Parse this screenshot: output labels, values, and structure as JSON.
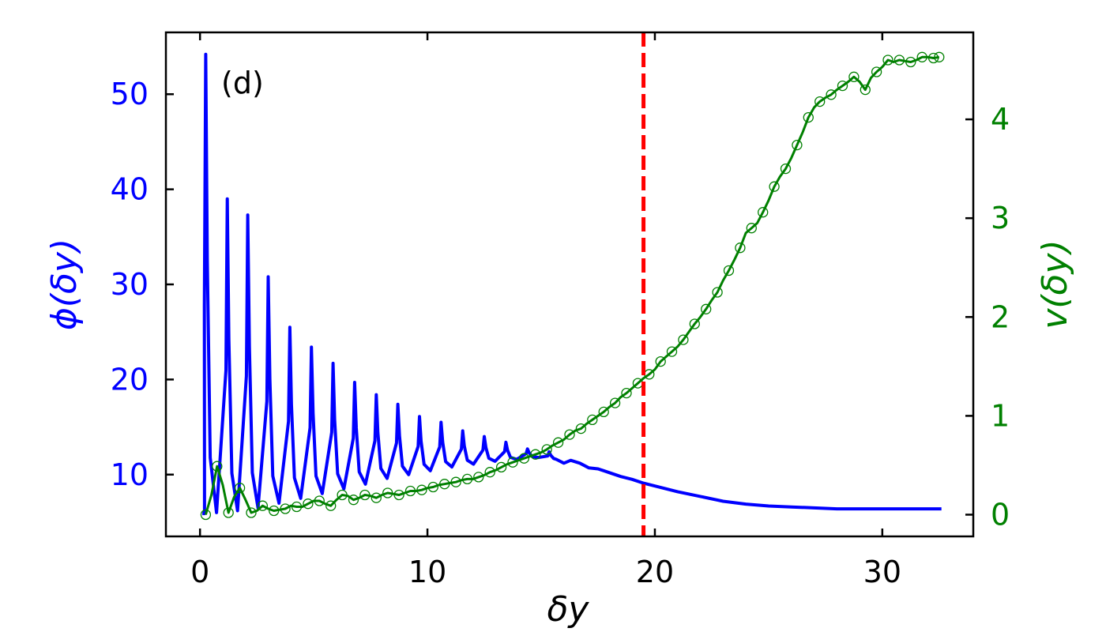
{
  "chart_data": {
    "type": "line",
    "panel_label": "(d)",
    "xlabel": "δy",
    "ylabel_left": "ϕ(δy)",
    "ylabel_right": "v(δy)",
    "xlim": [
      -1.5,
      34.0
    ],
    "ylim_left": [
      3.5,
      56.5
    ],
    "ylim_right": [
      -0.22,
      4.88
    ],
    "xticks": [
      0,
      10,
      20,
      30
    ],
    "yticks_left": [
      10,
      20,
      30,
      40,
      50
    ],
    "yticks_right": [
      0,
      1,
      2,
      3,
      4
    ],
    "grid": false,
    "colors": {
      "phi": "#0000ff",
      "v": "#008000",
      "vline": "#ff0000",
      "left_axis_text": "#0000ff",
      "right_axis_text": "#008000",
      "frame": "#000000"
    },
    "vline": {
      "x": 19.5,
      "style": "dashed"
    },
    "phi_series": {
      "description_free": true,
      "baseline_x": [
        0.1,
        0.2
      ],
      "baseline_y": [
        5.9,
        5.9
      ],
      "peaks": [
        {
          "x": 0.25,
          "y": 54.2,
          "min": 6.0
        },
        {
          "x": 1.2,
          "y": 39.0,
          "min": 6.2
        },
        {
          "x": 2.1,
          "y": 37.3,
          "min": 6.5
        },
        {
          "x": 3.0,
          "y": 30.8,
          "min": 7.0
        },
        {
          "x": 3.95,
          "y": 25.5,
          "min": 7.5
        },
        {
          "x": 4.9,
          "y": 23.4,
          "min": 8.0
        },
        {
          "x": 5.85,
          "y": 21.7,
          "min": 8.5
        },
        {
          "x": 6.8,
          "y": 19.7,
          "min": 9.0
        },
        {
          "x": 7.75,
          "y": 18.4,
          "min": 9.6
        },
        {
          "x": 8.7,
          "y": 17.4,
          "min": 10.0
        },
        {
          "x": 9.65,
          "y": 16.1,
          "min": 10.4
        },
        {
          "x": 10.6,
          "y": 15.5,
          "min": 10.8
        },
        {
          "x": 11.55,
          "y": 14.6,
          "min": 11.1
        },
        {
          "x": 12.5,
          "y": 14.0,
          "min": 11.4
        },
        {
          "x": 13.45,
          "y": 13.4,
          "min": 11.6
        },
        {
          "x": 14.4,
          "y": 12.7,
          "min": 11.8
        },
        {
          "x": 15.35,
          "y": 12.4,
          "min": 11.6
        }
      ],
      "tail_x": [
        16.0,
        16.3,
        16.7,
        17.1,
        17.5,
        18.0,
        18.5,
        19.0,
        19.5,
        20.0,
        20.5,
        21.0,
        22.0,
        23.0,
        24.0,
        25.0,
        26.0,
        27.0,
        28.0,
        29.0,
        30.0,
        31.0,
        32.0,
        32.6
      ],
      "tail_y": [
        11.2,
        11.5,
        11.2,
        10.7,
        10.6,
        10.2,
        9.8,
        9.5,
        9.1,
        8.8,
        8.5,
        8.2,
        7.7,
        7.2,
        6.9,
        6.7,
        6.6,
        6.5,
        6.4,
        6.4,
        6.4,
        6.4,
        6.4,
        6.4
      ]
    },
    "v_series": {
      "x": [
        0.25,
        0.5,
        0.75,
        1.0,
        1.25,
        1.5,
        1.75,
        2.0,
        2.25,
        2.5,
        2.75,
        3.0,
        3.25,
        3.5,
        3.75,
        4.0,
        4.25,
        4.5,
        4.75,
        5.0,
        5.25,
        5.5,
        5.75,
        6.0,
        6.25,
        6.5,
        6.75,
        7.0,
        7.25,
        7.5,
        7.75,
        8.0,
        8.25,
        8.5,
        8.75,
        9.0,
        9.25,
        9.5,
        9.75,
        10.0,
        10.25,
        10.5,
        10.75,
        11.0,
        11.25,
        11.5,
        11.75,
        12.0,
        12.25,
        12.5,
        12.75,
        13.0,
        13.25,
        13.5,
        13.75,
        14.0,
        14.25,
        14.5,
        14.75,
        15.0,
        15.25,
        15.5,
        15.75,
        16.0,
        16.25,
        16.5,
        16.75,
        17.0,
        17.25,
        17.5,
        17.75,
        18.0,
        18.25,
        18.5,
        18.75,
        19.0,
        19.25,
        19.5,
        19.75,
        20.0,
        20.25,
        20.5,
        20.75,
        21.0,
        21.25,
        21.5,
        21.75,
        22.0,
        22.25,
        22.5,
        22.75,
        23.0,
        23.25,
        23.5,
        23.75,
        24.0,
        24.25,
        24.5,
        24.75,
        25.0,
        25.25,
        25.5,
        25.75,
        26.0,
        26.25,
        26.5,
        26.75,
        27.0,
        27.25,
        27.5,
        27.75,
        28.0,
        28.25,
        28.5,
        28.75,
        29.0,
        29.25,
        29.5,
        29.75,
        30.0,
        30.25,
        30.5,
        30.75,
        31.0,
        31.25,
        31.5,
        31.75,
        32.0,
        32.25,
        32.5
      ],
      "y": [
        0.0,
        0.2,
        0.49,
        0.3,
        0.02,
        0.18,
        0.27,
        0.15,
        0.02,
        0.04,
        0.09,
        0.06,
        0.04,
        0.05,
        0.06,
        0.09,
        0.08,
        0.08,
        0.11,
        0.14,
        0.14,
        0.11,
        0.09,
        0.15,
        0.2,
        0.19,
        0.15,
        0.17,
        0.2,
        0.19,
        0.17,
        0.2,
        0.22,
        0.21,
        0.2,
        0.22,
        0.24,
        0.24,
        0.25,
        0.27,
        0.28,
        0.3,
        0.31,
        0.32,
        0.33,
        0.35,
        0.36,
        0.36,
        0.38,
        0.4,
        0.43,
        0.45,
        0.48,
        0.51,
        0.53,
        0.55,
        0.57,
        0.59,
        0.61,
        0.63,
        0.66,
        0.7,
        0.73,
        0.76,
        0.81,
        0.85,
        0.87,
        0.92,
        0.96,
        1.0,
        1.04,
        1.09,
        1.13,
        1.19,
        1.23,
        1.28,
        1.33,
        1.38,
        1.42,
        1.47,
        1.55,
        1.6,
        1.65,
        1.7,
        1.77,
        1.85,
        1.93,
        2.0,
        2.08,
        2.17,
        2.25,
        2.37,
        2.47,
        2.58,
        2.7,
        2.85,
        2.9,
        2.95,
        3.06,
        3.18,
        3.32,
        3.42,
        3.5,
        3.61,
        3.74,
        3.87,
        4.02,
        4.12,
        4.18,
        4.22,
        4.25,
        4.3,
        4.34,
        4.38,
        4.43,
        4.38,
        4.3,
        4.42,
        4.48,
        4.53,
        4.6,
        4.58,
        4.6,
        4.59,
        4.58,
        4.6,
        4.63,
        4.63,
        4.62,
        4.63
      ],
      "marker_x": [
        0.25,
        0.75,
        1.25,
        1.75,
        2.25,
        2.75,
        3.25,
        3.75,
        4.25,
        4.75,
        5.25,
        5.75,
        6.25,
        6.75,
        7.25,
        7.75,
        8.25,
        8.75,
        9.25,
        9.75,
        10.25,
        10.75,
        11.25,
        11.75,
        12.25,
        12.75,
        13.25,
        13.75,
        14.25,
        14.75,
        15.25,
        15.75,
        16.25,
        16.75,
        17.25,
        17.75,
        18.25,
        18.75,
        19.25,
        19.75,
        20.25,
        20.75,
        21.25,
        21.75,
        22.25,
        22.75,
        23.25,
        23.75,
        24.25,
        24.75,
        25.25,
        25.75,
        26.25,
        26.75,
        27.25,
        27.75,
        28.25,
        28.75,
        29.25,
        29.75,
        30.25,
        30.75,
        31.25,
        31.75,
        32.25,
        32.5
      ]
    }
  }
}
